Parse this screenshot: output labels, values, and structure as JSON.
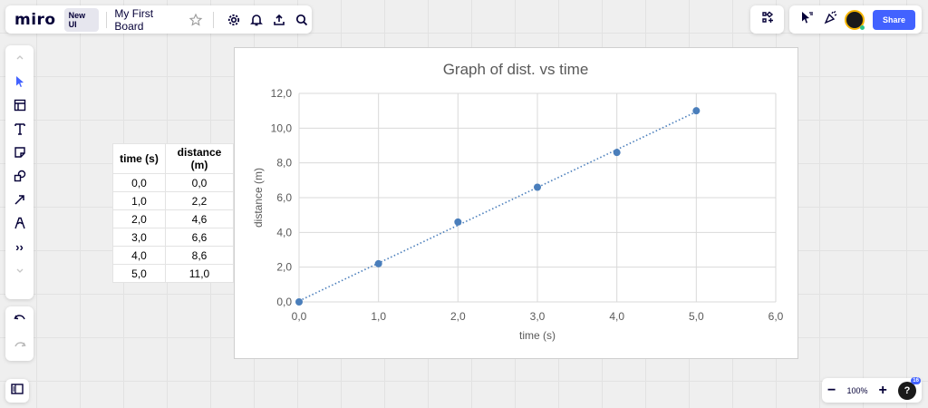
{
  "topbar": {
    "logo": "miro",
    "badge": "New UI",
    "board_name": "My First Board",
    "icons": [
      "star-icon",
      "gear-icon",
      "bell-icon",
      "upload-icon",
      "search-icon"
    ]
  },
  "topright": {
    "share_label": "Share",
    "icons": [
      "apps-icon",
      "cursor-icon",
      "celebrate-icon",
      "avatar"
    ]
  },
  "left_toolbar": {
    "tools": [
      "select-icon",
      "template-icon",
      "text-icon",
      "sticky-note-icon",
      "shapes-icon",
      "arrow-icon",
      "pen-icon",
      "more-icon"
    ],
    "more_label": "››"
  },
  "zoom": {
    "minus": "−",
    "level": "100%",
    "plus": "+",
    "help": "?",
    "notifications": "16"
  },
  "table": {
    "headers": [
      "time (s)",
      "distance (m)"
    ],
    "rows": [
      [
        "0,0",
        "0,0"
      ],
      [
        "1,0",
        "2,2"
      ],
      [
        "2,0",
        "4,6"
      ],
      [
        "3,0",
        "6,6"
      ],
      [
        "4,0",
        "8,6"
      ],
      [
        "5,0",
        "11,0"
      ]
    ]
  },
  "chart_data": {
    "type": "scatter",
    "title": "Graph of dist. vs time",
    "xlabel": "time (s)",
    "ylabel": "distance (m)",
    "x": [
      0,
      1,
      2,
      3,
      4,
      5
    ],
    "y": [
      0,
      2.2,
      4.6,
      6.6,
      8.6,
      11
    ],
    "xlim": [
      0,
      6
    ],
    "ylim": [
      0,
      12
    ],
    "xticks": [
      "0,0",
      "1,0",
      "2,0",
      "3,0",
      "4,0",
      "5,0",
      "6,0"
    ],
    "yticks": [
      "0,0",
      "2,0",
      "4,0",
      "6,0",
      "8,0",
      "10,0",
      "12,0"
    ],
    "trendline": "linear, dotted",
    "grid": true,
    "marker_color": "#4a7ebb",
    "trend_color": "#4a7ebb"
  },
  "colors": {
    "accent": "#4262ff",
    "ink": "#050038"
  }
}
